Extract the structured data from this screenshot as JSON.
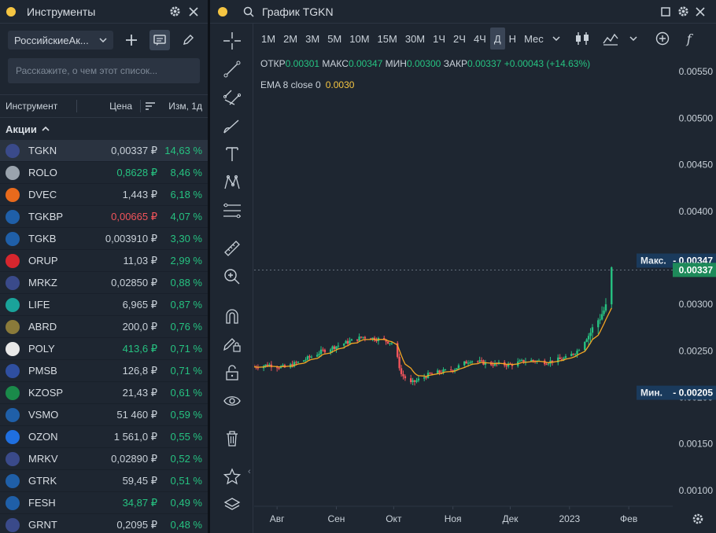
{
  "left_panel": {
    "title": "Инструменты",
    "list_select": "РоссийскиеАк...",
    "search_placeholder": "Расскажите, о чем этот список...",
    "columns": {
      "instrument": "Инструмент",
      "price": "Цена",
      "change": "Изм, 1д"
    },
    "group": "Акции",
    "rows": [
      {
        "ticker": "TGKN",
        "price": "0,00337 ₽",
        "change": "14,63 %",
        "price_color": "neutral",
        "logo_color": "#3a4a8a",
        "selected": true
      },
      {
        "ticker": "ROLO",
        "price": "0,8628 ₽",
        "change": "8,46 %",
        "price_color": "up",
        "logo_color": "#9aa3ad"
      },
      {
        "ticker": "DVEC",
        "price": "1,443 ₽",
        "change": "6,18 %",
        "price_color": "neutral",
        "logo_color": "#e86a1c"
      },
      {
        "ticker": "TGKBP",
        "price": "0,00665 ₽",
        "change": "4,07 %",
        "price_color": "down",
        "logo_color": "#1f5fa8"
      },
      {
        "ticker": "TGKB",
        "price": "0,003910 ₽",
        "change": "3,30 %",
        "price_color": "neutral",
        "logo_color": "#1f5fa8"
      },
      {
        "ticker": "ORUP",
        "price": "11,03 ₽",
        "change": "2,99 %",
        "price_color": "neutral",
        "logo_color": "#d6262e"
      },
      {
        "ticker": "MRKZ",
        "price": "0,02850 ₽",
        "change": "0,88 %",
        "price_color": "neutral",
        "logo_color": "#3a4a8a"
      },
      {
        "ticker": "LIFE",
        "price": "6,965 ₽",
        "change": "0,87 %",
        "price_color": "neutral",
        "logo_color": "#1aa39a"
      },
      {
        "ticker": "ABRD",
        "price": "200,0 ₽",
        "change": "0,76 %",
        "price_color": "neutral",
        "logo_color": "#8a7a3a"
      },
      {
        "ticker": "POLY",
        "price": "413,6 ₽",
        "change": "0,71 %",
        "price_color": "up",
        "logo_color": "#e8e8e8"
      },
      {
        "ticker": "PMSB",
        "price": "126,8 ₽",
        "change": "0,71 %",
        "price_color": "neutral",
        "logo_color": "#2f4fa0"
      },
      {
        "ticker": "KZOSP",
        "price": "21,43 ₽",
        "change": "0,61 %",
        "price_color": "neutral",
        "logo_color": "#1a8a4a"
      },
      {
        "ticker": "VSMO",
        "price": "51 460 ₽",
        "change": "0,59 %",
        "price_color": "neutral",
        "logo_color": "#1f5fa8"
      },
      {
        "ticker": "OZON",
        "price": "1 561,0 ₽",
        "change": "0,55 %",
        "price_color": "neutral",
        "logo_color": "#1f6fe0"
      },
      {
        "ticker": "MRKV",
        "price": "0,02890 ₽",
        "change": "0,52 %",
        "price_color": "neutral",
        "logo_color": "#3a4a8a"
      },
      {
        "ticker": "GTRK",
        "price": "59,45 ₽",
        "change": "0,51 %",
        "price_color": "neutral",
        "logo_color": "#1f5fa8"
      },
      {
        "ticker": "FESH",
        "price": "34,87 ₽",
        "change": "0,49 %",
        "price_color": "up",
        "logo_color": "#1f5fa8"
      },
      {
        "ticker": "GRNT",
        "price": "0,2095 ₽",
        "change": "0,48 %",
        "price_color": "neutral",
        "logo_color": "#3a4a8a"
      }
    ]
  },
  "right_panel": {
    "title": "График TGKN",
    "timeframes": [
      "1М",
      "2М",
      "3М",
      "5М",
      "10М",
      "15М",
      "30М",
      "1Ч",
      "2Ч",
      "4Ч",
      "Д",
      "Н",
      "Мес"
    ],
    "active_timeframe": "Д",
    "ohlc": {
      "open_label": "ОТКР",
      "open": "0.00301",
      "high_label": "МАКС",
      "high": "0.00347",
      "low_label": "МИН",
      "low": "0.00300",
      "close_label": "ЗАКР",
      "close": "0.00337",
      "change": "+0.00043 (+14.63%)"
    },
    "ema_label": "EMA 8 close 0",
    "ema_value": "0.0030"
  },
  "chart_data": {
    "type": "candlestick",
    "x_ticks": [
      "Авг",
      "Сен",
      "Окт",
      "Ноя",
      "Дек",
      "2023",
      "Фев"
    ],
    "y_ticks": [
      "0.00550",
      "0.00500",
      "0.00450",
      "0.00400",
      "0.00350",
      "0.00300",
      "0.00250",
      "0.00200",
      "0.00150",
      "0.00100"
    ],
    "ylim": [
      0.00083,
      0.00573
    ],
    "max_label": "Макс.",
    "max_value": "0.00347",
    "min_label": "Мин.",
    "min_value": "0.00205",
    "last_value": "0.00337",
    "colors": {
      "up": "#26c281",
      "down": "#f2545b",
      "ema": "#f5a623"
    },
    "close_path": [
      [
        "2022-07-20",
        0.00233
      ],
      [
        "2022-07-28",
        0.00235
      ],
      [
        "2022-08-05",
        0.00232
      ],
      [
        "2022-08-15",
        0.0024
      ],
      [
        "2022-08-25",
        0.0025
      ],
      [
        "2022-09-05",
        0.00258
      ],
      [
        "2022-09-15",
        0.00265
      ],
      [
        "2022-09-25",
        0.00262
      ],
      [
        "2022-10-01",
        0.00258
      ],
      [
        "2022-10-05",
        0.00225
      ],
      [
        "2022-10-10",
        0.00215
      ],
      [
        "2022-10-20",
        0.00225
      ],
      [
        "2022-11-01",
        0.0023
      ],
      [
        "2022-11-10",
        0.0024
      ],
      [
        "2022-11-20",
        0.00236
      ],
      [
        "2022-12-01",
        0.00235
      ],
      [
        "2022-12-10",
        0.0024
      ],
      [
        "2022-12-20",
        0.00238
      ],
      [
        "2022-12-30",
        0.00242
      ],
      [
        "2023-01-05",
        0.0025
      ],
      [
        "2023-01-12",
        0.0027
      ],
      [
        "2023-01-18",
        0.0029
      ],
      [
        "2023-01-21",
        0.003
      ],
      [
        "2023-01-23",
        0.00337
      ]
    ]
  }
}
